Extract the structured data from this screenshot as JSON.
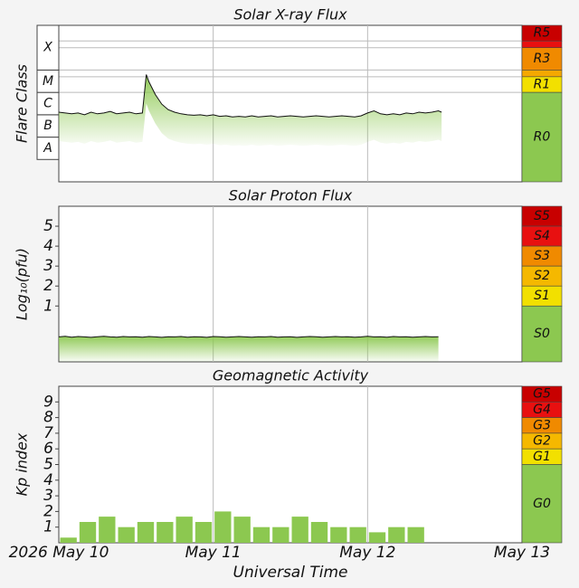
{
  "chart_data": [
    {
      "type": "line",
      "title": "Solar X-ray Flux",
      "ylabel": "Flare Class",
      "log_scale": true,
      "ylim": [
        1e-09,
        0.01
      ],
      "band_lines": true,
      "color": "#111111",
      "fill_color": "#8cc850",
      "flare_classes": [
        {
          "label": "A",
          "lower": 1e-08,
          "upper": 1e-07
        },
        {
          "label": "B",
          "lower": 1e-07,
          "upper": 1e-06
        },
        {
          "label": "C",
          "lower": 1e-06,
          "upper": 1e-05
        },
        {
          "label": "M",
          "lower": 1e-05,
          "upper": 0.0001
        },
        {
          "label": "X",
          "lower": 0.0001,
          "upper": 0.01
        }
      ],
      "scale_bands": [
        {
          "label": "R5",
          "lower": 0.002,
          "upper": 0.01,
          "color": "#c80000"
        },
        {
          "label": null,
          "lower": 0.001,
          "upper": 0.002,
          "color": "#e81010"
        },
        {
          "label": "R3",
          "lower": 0.0001,
          "upper": 0.001,
          "color": "#f08a00"
        },
        {
          "label": null,
          "lower": 5e-05,
          "upper": 0.0001,
          "color": "#f5a800"
        },
        {
          "label": "R1",
          "lower": 1e-05,
          "upper": 5e-05,
          "color": "#f2e000"
        },
        {
          "label": "R0",
          "lower": 1e-09,
          "upper": 1e-05,
          "color": "#8cc850"
        }
      ],
      "x": [
        0,
        1,
        2,
        3,
        4,
        5,
        6,
        7,
        8,
        9,
        10,
        11,
        12,
        13,
        13.6,
        14,
        15,
        16,
        17,
        18,
        19,
        20,
        21,
        22,
        23,
        24,
        25,
        26,
        27,
        28,
        29,
        30,
        31,
        32,
        33,
        34,
        35,
        36,
        37,
        38,
        39,
        40,
        41,
        42,
        43,
        44,
        45,
        46,
        47,
        48,
        49,
        50,
        51,
        52,
        53,
        54,
        55,
        56,
        57,
        58,
        59,
        59.5
      ],
      "values": [
        1.3e-06,
        1.2e-06,
        1.1e-06,
        1.2e-06,
        1e-06,
        1.3e-06,
        1.1e-06,
        1.2e-06,
        1.4e-06,
        1.1e-06,
        1.2e-06,
        1.3e-06,
        1.1e-06,
        1.2e-06,
        6.3e-05,
        3e-05,
        8e-06,
        3e-06,
        1.7e-06,
        1.3e-06,
        1.1e-06,
        1e-06,
        9.5e-07,
        1e-06,
        9e-07,
        1e-06,
        8.5e-07,
        9e-07,
        8e-07,
        8.5e-07,
        8e-07,
        9e-07,
        8e-07,
        8.5e-07,
        9e-07,
        8e-07,
        8.5e-07,
        9e-07,
        8.5e-07,
        8e-07,
        8.5e-07,
        9e-07,
        8.5e-07,
        8e-07,
        8.5e-07,
        9e-07,
        8.5e-07,
        8e-07,
        9e-07,
        1.2e-06,
        1.5e-06,
        1.1e-06,
        1e-06,
        1.1e-06,
        1e-06,
        1.2e-06,
        1.1e-06,
        1.3e-06,
        1.2e-06,
        1.3e-06,
        1.5e-06,
        1.3e-06
      ]
    },
    {
      "type": "line",
      "title": "Solar Proton Flux",
      "ylabel": "Log₁₀(pfu)",
      "ylim": [
        -1.8,
        6
      ],
      "yticks": [
        1,
        2,
        3,
        4,
        5
      ],
      "color": "#111111",
      "fill_color": "#8cc850",
      "scale_bands": [
        {
          "label": "S5",
          "lower": 5,
          "upper": 6,
          "color": "#c80000"
        },
        {
          "label": "S4",
          "lower": 4,
          "upper": 5,
          "color": "#e81010"
        },
        {
          "label": "S3",
          "lower": 3,
          "upper": 4,
          "color": "#f08a00"
        },
        {
          "label": "S2",
          "lower": 2,
          "upper": 3,
          "color": "#f5b800"
        },
        {
          "label": "S1",
          "lower": 1,
          "upper": 2,
          "color": "#f2e000"
        },
        {
          "label": "S0",
          "lower": -1.8,
          "upper": 1,
          "color": "#8cc850"
        }
      ],
      "x": [
        0,
        1,
        2,
        3,
        4,
        5,
        6,
        7,
        8,
        9,
        10,
        11,
        12,
        13,
        14,
        15,
        16,
        17,
        18,
        19,
        20,
        21,
        22,
        23,
        24,
        25,
        26,
        27,
        28,
        29,
        30,
        31,
        32,
        33,
        34,
        35,
        36,
        37,
        38,
        39,
        40,
        41,
        42,
        43,
        44,
        45,
        46,
        47,
        48,
        49,
        50,
        51,
        52,
        53,
        54,
        55,
        56,
        57,
        58,
        59
      ],
      "values": [
        -0.55,
        -0.52,
        -0.56,
        -0.53,
        -0.55,
        -0.57,
        -0.54,
        -0.52,
        -0.55,
        -0.56,
        -0.53,
        -0.55,
        -0.54,
        -0.56,
        -0.53,
        -0.55,
        -0.57,
        -0.54,
        -0.55,
        -0.53,
        -0.56,
        -0.54,
        -0.55,
        -0.57,
        -0.53,
        -0.54,
        -0.56,
        -0.55,
        -0.53,
        -0.55,
        -0.56,
        -0.54,
        -0.55,
        -0.53,
        -0.56,
        -0.55,
        -0.54,
        -0.57,
        -0.55,
        -0.53,
        -0.54,
        -0.56,
        -0.55,
        -0.53,
        -0.55,
        -0.54,
        -0.56,
        -0.55,
        -0.52,
        -0.55,
        -0.54,
        -0.56,
        -0.53,
        -0.55,
        -0.54,
        -0.56,
        -0.55,
        -0.53,
        -0.55,
        -0.54
      ]
    },
    {
      "type": "bar",
      "title": "Geomagnetic Activity",
      "ylabel": "Kp index",
      "ylim": [
        0,
        10
      ],
      "yticks": [
        1,
        2,
        3,
        4,
        5,
        6,
        7,
        8,
        9
      ],
      "color": "#8cc850",
      "scale_bands": [
        {
          "label": "G5",
          "lower": 9,
          "upper": 10,
          "color": "#c80000"
        },
        {
          "label": "G4",
          "lower": 8,
          "upper": 9,
          "color": "#e81010"
        },
        {
          "label": "G3",
          "lower": 7,
          "upper": 8,
          "color": "#f08a00"
        },
        {
          "label": "G2",
          "lower": 6,
          "upper": 7,
          "color": "#f5b800"
        },
        {
          "label": "G1",
          "lower": 5,
          "upper": 6,
          "color": "#f2e000"
        },
        {
          "label": "G0",
          "lower": 0,
          "upper": 5,
          "color": "#8cc850"
        }
      ],
      "x": [
        0,
        3,
        6,
        9,
        12,
        15,
        18,
        21,
        24,
        27,
        30,
        33,
        36,
        39,
        42,
        45,
        48,
        51,
        54
      ],
      "values": [
        0.33,
        1.33,
        1.67,
        1,
        1.33,
        1.33,
        1.67,
        1.33,
        2,
        1.67,
        1,
        1,
        1.67,
        1.33,
        1,
        1,
        0.67,
        1,
        1
      ],
      "xlabel": "Universal Time",
      "xlim": [
        0,
        72
      ],
      "xticks": [
        {
          "value": 0,
          "label": "2026 May 10"
        },
        {
          "value": 24,
          "label": "May 11"
        },
        {
          "value": 48,
          "label": "May 12"
        },
        {
          "value": 72,
          "label": "May 13"
        }
      ]
    }
  ]
}
